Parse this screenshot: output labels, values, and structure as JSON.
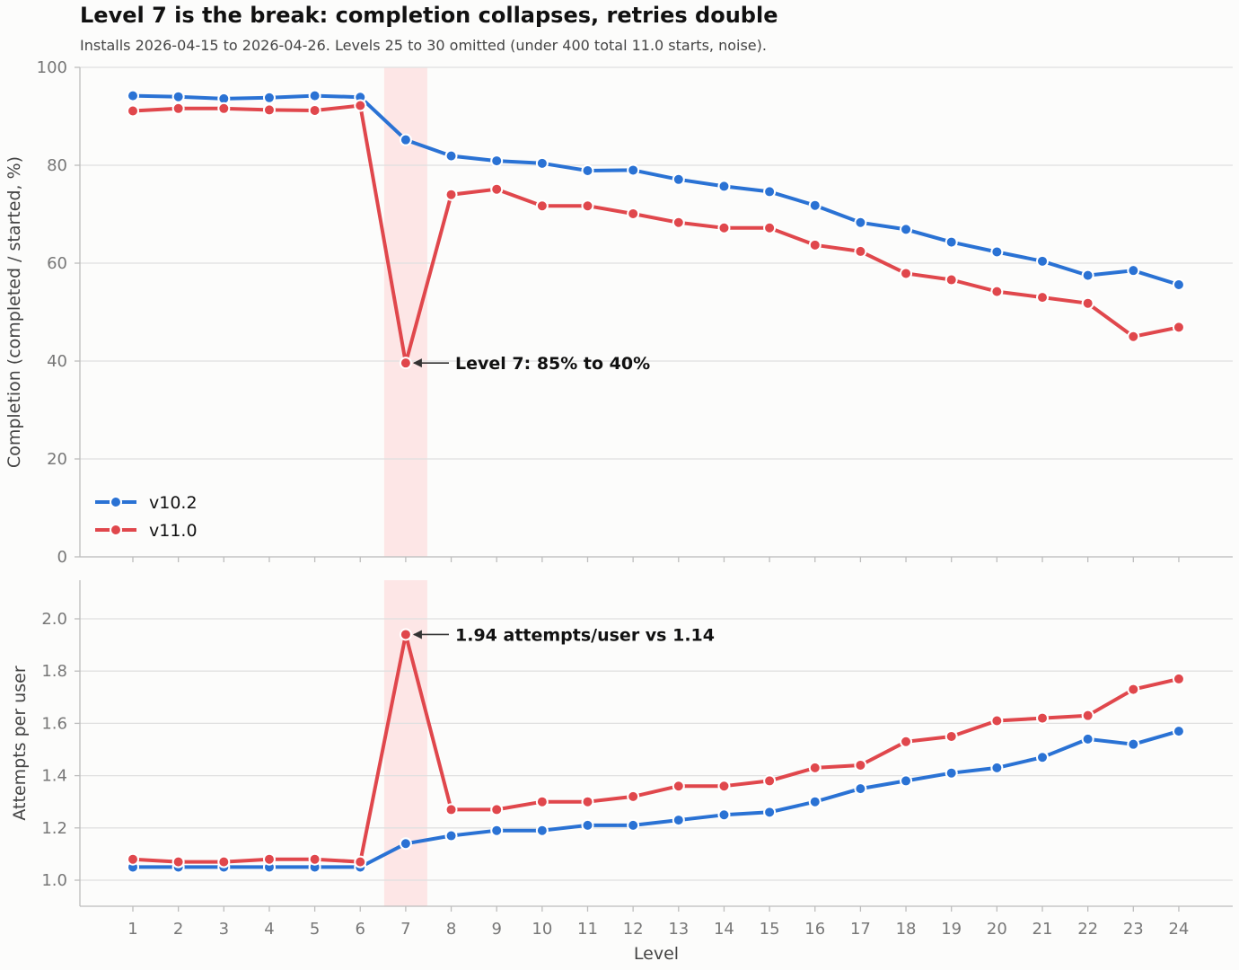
{
  "chart_data": {
    "type": "line",
    "title": "Level 7 is the break: completion collapses, retries double",
    "subtitle": "Installs 2026-04-15 to 2026-04-26. Levels 25 to 30 omitted (under 400 total 11.0 starts, noise).",
    "xlabel": "Level",
    "x": [
      1,
      2,
      3,
      4,
      5,
      6,
      7,
      8,
      9,
      10,
      11,
      12,
      13,
      14,
      15,
      16,
      17,
      18,
      19,
      20,
      21,
      22,
      23,
      24
    ],
    "highlight_level": 7,
    "legend_position": "lower-left",
    "colors": {
      "v10.2": "#2a72d4",
      "v11.0": "#e0474c",
      "highlight": "#fde6e6"
    },
    "panels": [
      {
        "ylabel": "Completion (completed / started, %)",
        "ylim": [
          0,
          100
        ],
        "yticks": [
          0,
          20,
          40,
          60,
          80,
          100
        ],
        "series": [
          {
            "name": "v10.2",
            "values": [
              94.2,
              94.0,
              93.6,
              93.8,
              94.2,
              93.9,
              85.2,
              81.9,
              80.9,
              80.4,
              78.9,
              79.0,
              77.1,
              75.7,
              74.6,
              71.8,
              68.3,
              66.9,
              64.3,
              62.3,
              60.4,
              57.5,
              58.5,
              55.6
            ]
          },
          {
            "name": "v11.0",
            "values": [
              91.1,
              91.6,
              91.6,
              91.3,
              91.2,
              92.2,
              39.6,
              74.0,
              75.1,
              71.7,
              71.7,
              70.1,
              68.3,
              67.2,
              67.2,
              63.7,
              62.4,
              57.9,
              56.6,
              54.2,
              53.0,
              51.8,
              45.0,
              46.9
            ]
          }
        ],
        "annotation": "Level 7: 85%  to  40%"
      },
      {
        "ylabel": "Attempts per user",
        "ylim": [
          0.9,
          2.15
        ],
        "yticks": [
          1.0,
          1.2,
          1.4,
          1.6,
          1.8,
          2.0
        ],
        "series": [
          {
            "name": "v10.2",
            "values": [
              1.05,
              1.05,
              1.05,
              1.05,
              1.05,
              1.05,
              1.14,
              1.17,
              1.19,
              1.19,
              1.21,
              1.21,
              1.23,
              1.25,
              1.26,
              1.3,
              1.35,
              1.38,
              1.41,
              1.43,
              1.47,
              1.54,
              1.52,
              1.57
            ]
          },
          {
            "name": "v11.0",
            "values": [
              1.08,
              1.07,
              1.07,
              1.08,
              1.08,
              1.07,
              1.94,
              1.27,
              1.27,
              1.3,
              1.3,
              1.32,
              1.36,
              1.36,
              1.38,
              1.43,
              1.44,
              1.53,
              1.55,
              1.61,
              1.62,
              1.63,
              1.73,
              1.77
            ]
          }
        ],
        "annotation": "1.94 attempts/user vs 1.14"
      }
    ]
  }
}
